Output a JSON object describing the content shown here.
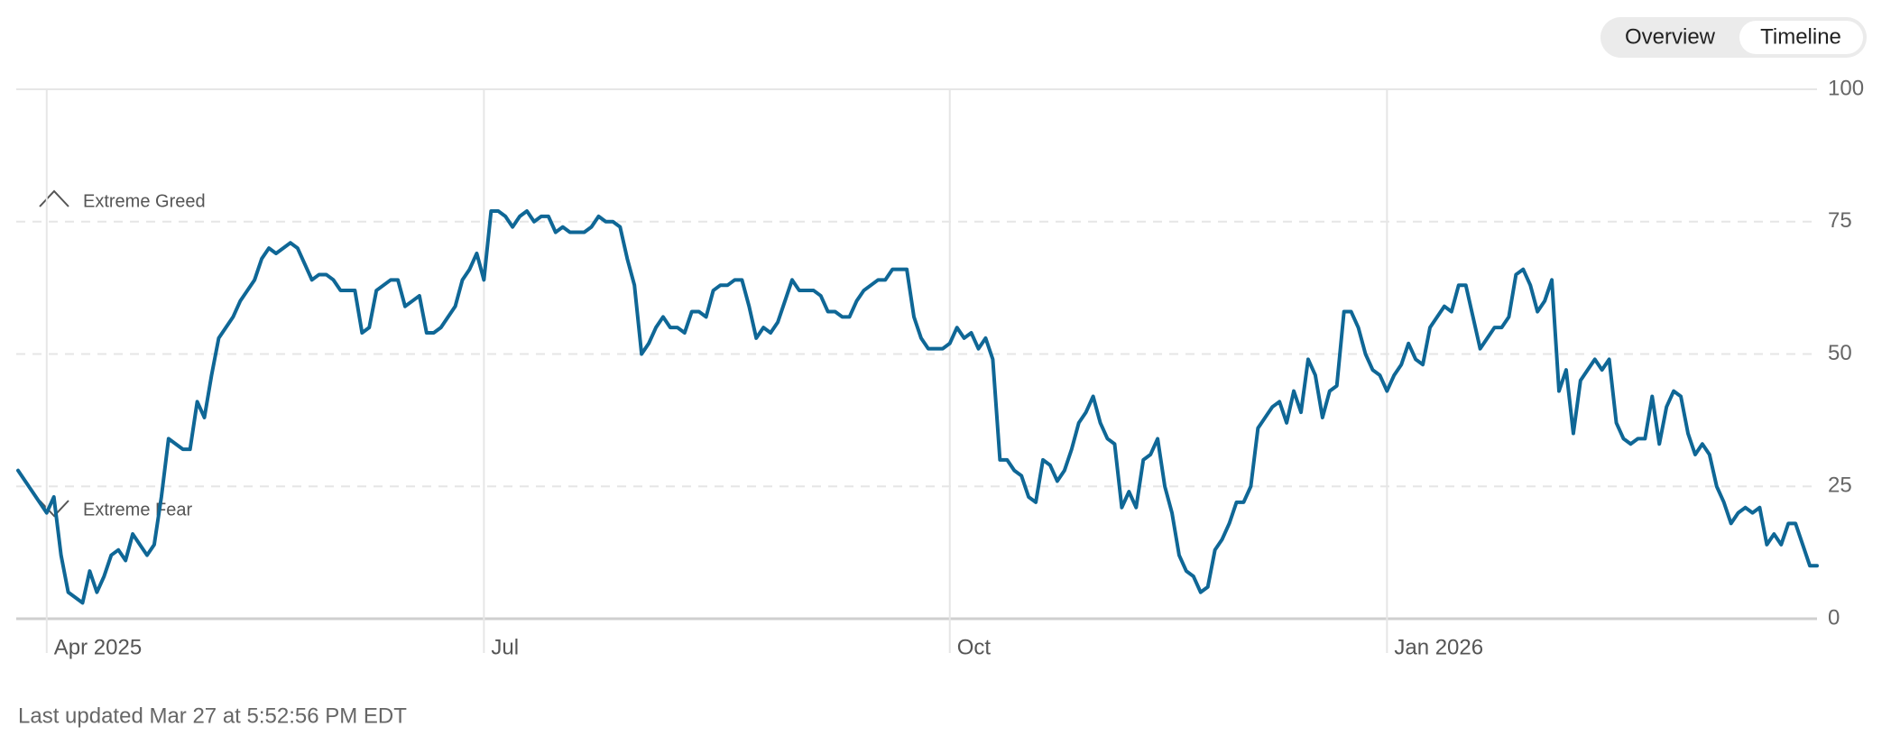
{
  "toggle": [
    "Overview",
    "Timeline"
  ],
  "footer": "Last updated Mar 27 at 5:52:56 PM EDT",
  "chart_data": {
    "type": "line",
    "annotations": [
      "Extreme Greed",
      "Extreme Fear"
    ],
    "ylim": [
      0,
      100
    ],
    "yticks": [
      0,
      25,
      50,
      75,
      100
    ],
    "grid": true,
    "categories": [
      null,
      null,
      null,
      null,
      "Apr 2025",
      null,
      null,
      null,
      null,
      null,
      null,
      null,
      null,
      null,
      null,
      null,
      null,
      null,
      null,
      null,
      null,
      null,
      null,
      null,
      null,
      null,
      null,
      null,
      null,
      null,
      null,
      null,
      null,
      null,
      null,
      null,
      null,
      null,
      null,
      null,
      null,
      null,
      null,
      null,
      null,
      null,
      null,
      null,
      null,
      null,
      null,
      null,
      null,
      null,
      null,
      null,
      null,
      null,
      null,
      null,
      null,
      null,
      null,
      null,
      null,
      "Jul",
      null,
      null,
      null,
      null,
      null,
      null,
      null,
      null,
      null,
      null,
      null,
      null,
      null,
      null,
      null,
      null,
      null,
      null,
      null,
      null,
      null,
      null,
      null,
      null,
      null,
      null,
      null,
      null,
      null,
      null,
      null,
      null,
      null,
      null,
      null,
      null,
      null,
      null,
      null,
      null,
      null,
      null,
      null,
      null,
      null,
      null,
      null,
      null,
      null,
      null,
      null,
      null,
      null,
      null,
      null,
      null,
      null,
      null,
      null,
      null,
      null,
      null,
      null,
      null,
      "Oct",
      null,
      null,
      null,
      null,
      null,
      null,
      null,
      null,
      null,
      null,
      null,
      null,
      null,
      null,
      null,
      null,
      null,
      null,
      null,
      null,
      null,
      null,
      null,
      null,
      null,
      null,
      null,
      null,
      null,
      null,
      null,
      null,
      null,
      null,
      null,
      null,
      null,
      null,
      null,
      null,
      null,
      null,
      null,
      null,
      null,
      null,
      null,
      null,
      null,
      null,
      null,
      null,
      null,
      null,
      null,
      null,
      null,
      null,
      null,
      null,
      "Jan 2026",
      null,
      null,
      null,
      null,
      null,
      null,
      null,
      null,
      null,
      null,
      null,
      null,
      null,
      null,
      null,
      null,
      null,
      null,
      null,
      null,
      null,
      null,
      null,
      null,
      null,
      null,
      null,
      null,
      null,
      null,
      null,
      null,
      null,
      null,
      null,
      null,
      null,
      null,
      null,
      null,
      null,
      null,
      null,
      null,
      null,
      null,
      null,
      null,
      null,
      null,
      null,
      null,
      null,
      null,
      null,
      null,
      null,
      null,
      null,
      null
    ],
    "series": [
      {
        "name": null,
        "color": "#0f6796",
        "values": [
          28,
          26,
          24,
          22,
          20,
          23,
          12,
          5,
          4,
          3,
          9,
          5,
          8,
          12,
          13,
          11,
          16,
          14,
          12,
          14,
          23,
          34,
          33,
          32,
          32,
          41,
          38,
          46,
          53,
          55,
          57,
          60,
          62,
          64,
          68,
          70,
          69,
          70,
          71,
          70,
          67,
          64,
          65,
          65,
          64,
          62,
          62,
          62,
          54,
          55,
          62,
          63,
          64,
          64,
          59,
          60,
          61,
          54,
          54,
          55,
          57,
          59,
          64,
          66,
          69,
          64,
          77,
          77,
          76,
          74,
          76,
          77,
          75,
          76,
          76,
          73,
          74,
          73,
          73,
          73,
          74,
          76,
          75,
          75,
          74,
          68,
          63,
          50,
          52,
          55,
          57,
          55,
          55,
          54,
          58,
          58,
          57,
          62,
          63,
          63,
          64,
          64,
          59,
          53,
          55,
          54,
          56,
          60,
          64,
          62,
          62,
          62,
          61,
          58,
          58,
          57,
          57,
          60,
          62,
          63,
          64,
          64,
          66,
          66,
          66,
          57,
          53,
          51,
          51,
          51,
          52,
          55,
          53,
          54,
          51,
          53,
          49,
          30,
          30,
          28,
          27,
          23,
          22,
          30,
          29,
          26,
          28,
          32,
          37,
          39,
          42,
          37,
          34,
          33,
          21,
          24,
          21,
          30,
          31,
          34,
          25,
          20,
          12,
          9,
          8,
          5,
          6,
          13,
          15,
          18,
          22,
          22,
          25,
          36,
          38,
          40,
          41,
          37,
          43,
          39,
          49,
          46,
          38,
          43,
          44,
          58,
          58,
          55,
          50,
          47,
          46,
          43,
          46,
          48,
          52,
          49,
          48,
          55,
          57,
          59,
          58,
          63,
          63,
          57,
          51,
          53,
          55,
          55,
          57,
          65,
          66,
          63,
          58,
          60,
          64,
          43,
          47,
          35,
          45,
          47,
          49,
          47,
          49,
          37,
          34,
          33,
          34,
          34,
          42,
          33,
          40,
          43,
          42,
          35,
          31,
          33,
          31,
          25,
          22,
          18,
          20,
          21,
          20,
          21,
          14,
          16,
          14,
          18,
          18,
          14,
          10,
          10
        ]
      }
    ]
  }
}
